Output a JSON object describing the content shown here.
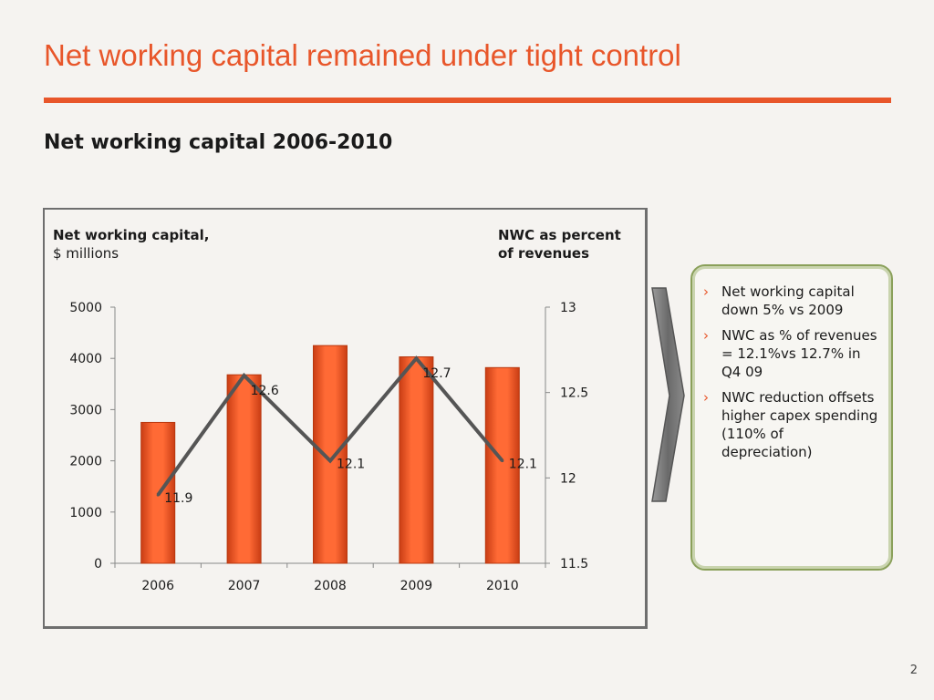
{
  "slide": {
    "title": "Net working capital remained under tight control",
    "subtitle": "Net working capital 2006-2010",
    "page_number": "2"
  },
  "colors": {
    "accent": "#e8562a",
    "bar": "#f05a28",
    "line": "#555555",
    "callout_border": "#8aa05a"
  },
  "chart_data": {
    "type": "bar+line",
    "left_heading": {
      "bold": "Net working capital,",
      "normal": "$ millions"
    },
    "right_heading": {
      "line1": "NWC as percent",
      "line2": "of revenues"
    },
    "categories": [
      "2006",
      "2007",
      "2008",
      "2009",
      "2010"
    ],
    "series": [
      {
        "type": "bar",
        "axis": "left",
        "values": [
          2750,
          3680,
          4250,
          4030,
          3820
        ]
      },
      {
        "type": "line",
        "axis": "right",
        "values": [
          11.9,
          12.6,
          12.1,
          12.7,
          12.1
        ],
        "data_labels": [
          "11.9",
          "12.6",
          "12.1",
          "12.7",
          "12.1"
        ]
      }
    ],
    "left_axis": {
      "min": 0,
      "max": 5000,
      "ticks": [
        "0",
        "1000",
        "2000",
        "3000",
        "4000",
        "5000"
      ]
    },
    "right_axis": {
      "min": 11.5,
      "max": 13,
      "ticks": [
        "11.5",
        "12",
        "12.5",
        "13"
      ]
    },
    "grid": false,
    "legend": "none"
  },
  "callout": {
    "bullet_icon": "chevron-right-icon",
    "bullets": [
      "Net working capital down 5% vs 2009",
      "NWC as % of revenues = 12.1%vs 12.7% in Q4 09",
      "NWC reduction offsets higher capex spending (110% of depreciation)"
    ]
  }
}
